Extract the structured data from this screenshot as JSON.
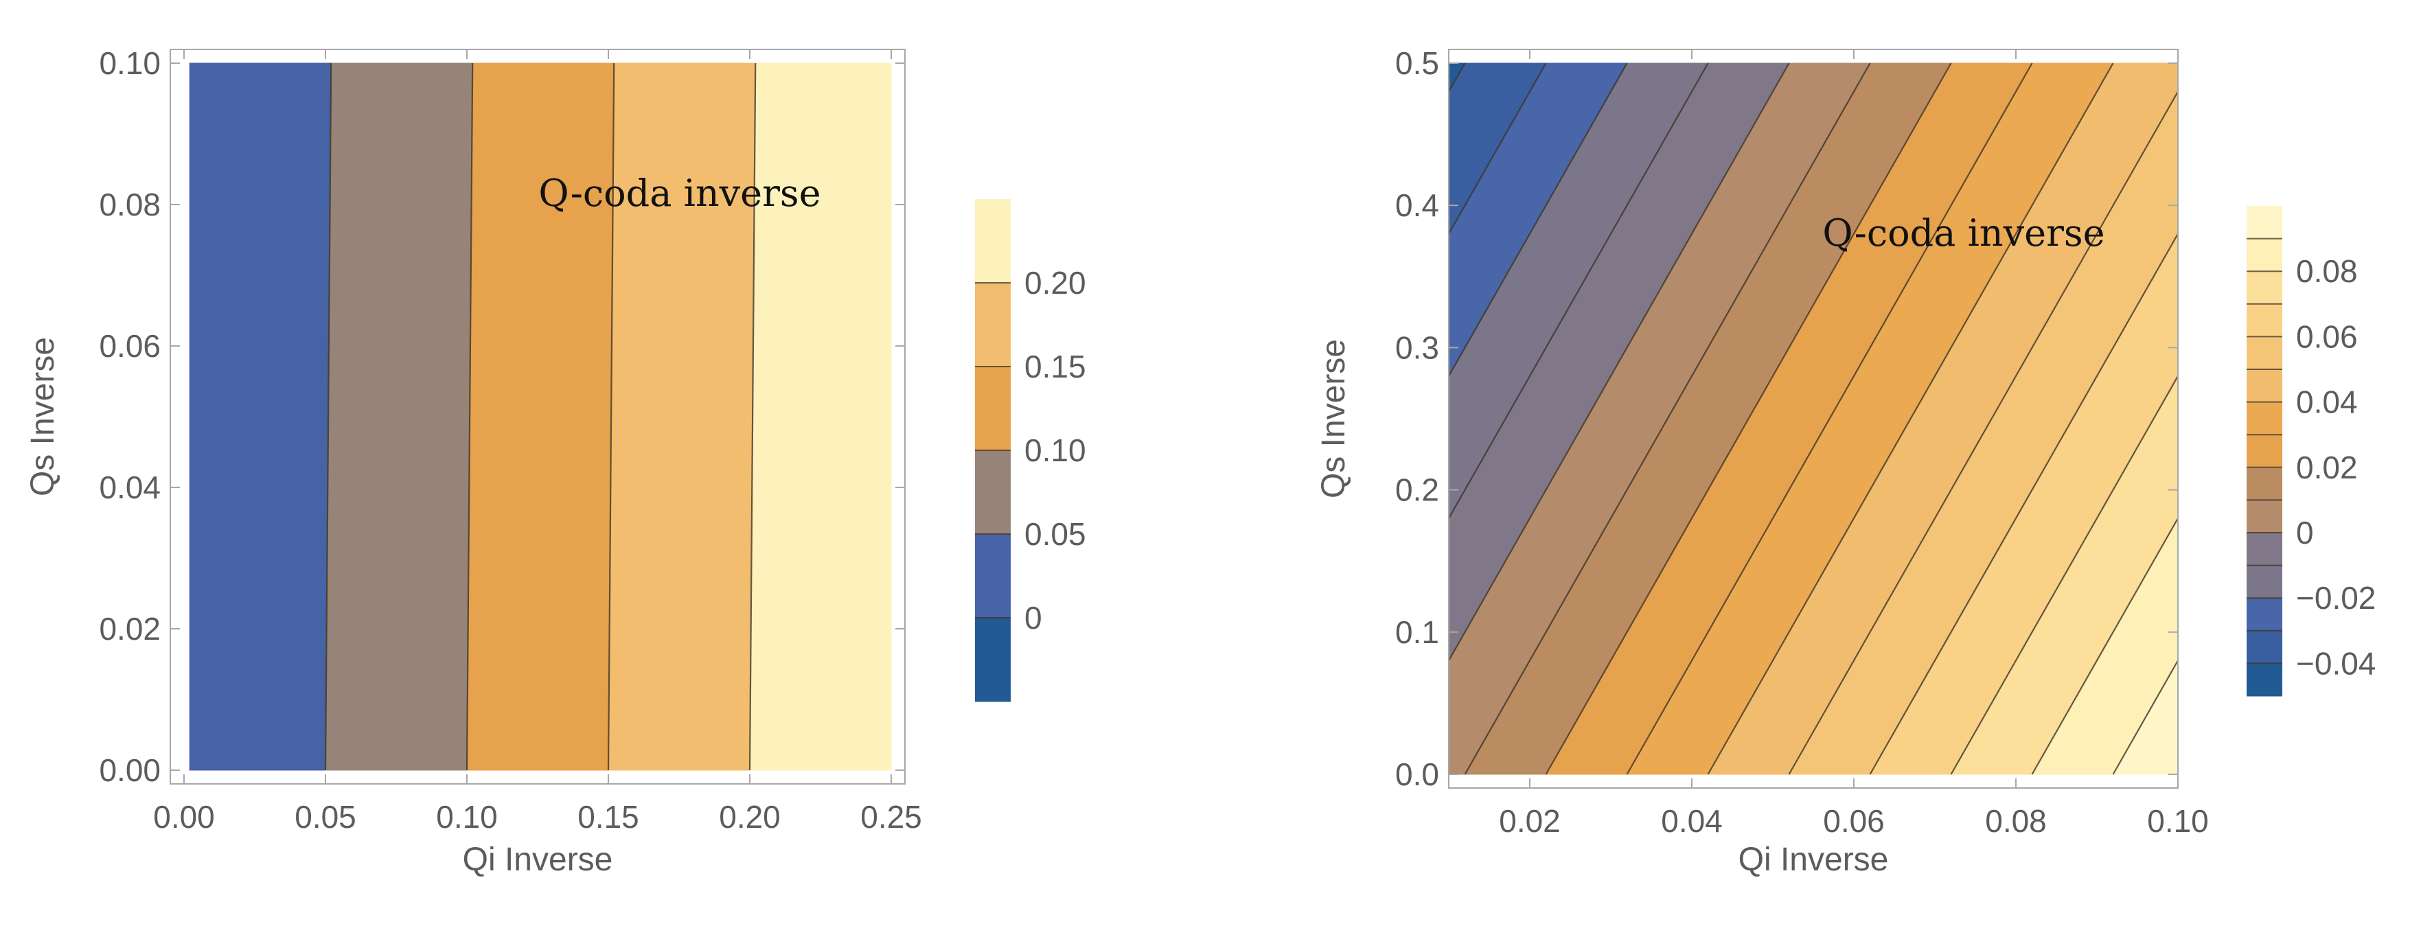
{
  "chart_data": [
    {
      "type": "contour",
      "xlabel": "Qi Inverse",
      "ylabel": "Qs Inverse",
      "annotation": "Q-coda inverse",
      "xlim": [
        0,
        0.25
      ],
      "ylim": [
        0,
        0.1
      ],
      "data_x_range": [
        0.002,
        0.25
      ],
      "data_y_range": [
        0,
        0.1
      ],
      "x_ticks": [
        0,
        0.05,
        0.1,
        0.15,
        0.2,
        0.25
      ],
      "x_tick_labels": [
        "0.00",
        "0.05",
        "0.10",
        "0.15",
        "0.20",
        "0.25"
      ],
      "y_ticks": [
        0,
        0.02,
        0.04,
        0.06,
        0.08,
        0.1
      ],
      "y_tick_labels": [
        "0.00",
        "0.02",
        "0.04",
        "0.06",
        "0.08",
        "0.10"
      ],
      "contour_model": {
        "form": "x + b*y + c",
        "b": -0.02,
        "c": 0.0
      },
      "levels": [
        -0.05,
        0,
        0.05,
        0.1,
        0.15,
        0.2,
        0.25
      ],
      "band_colors": [
        "#225b94",
        "#4663a6",
        "#968479",
        "#e6a24d",
        "#f2bd6e",
        "#fdf2bb"
      ],
      "legend_tick_labels": [
        "0",
        "0.05",
        "0.10",
        "0.15",
        "0.20"
      ],
      "grid": false,
      "legend_position": "right"
    },
    {
      "type": "contour",
      "xlabel": "Qi Inverse",
      "ylabel": "Qs Inverse",
      "annotation": "Q-coda inverse",
      "xlim": [
        0.01,
        0.1
      ],
      "ylim": [
        0,
        0.5
      ],
      "data_x_range": [
        0.01,
        0.1
      ],
      "data_y_range": [
        0,
        0.5
      ],
      "x_ticks": [
        0.02,
        0.04,
        0.06,
        0.08,
        0.1
      ],
      "x_tick_labels": [
        "0.02",
        "0.04",
        "0.06",
        "0.08",
        "0.10"
      ],
      "y_ticks": [
        0,
        0.1,
        0.2,
        0.3,
        0.4,
        0.5
      ],
      "y_tick_labels": [
        "0.0",
        "0.1",
        "0.2",
        "0.3",
        "0.4",
        "0.5"
      ],
      "contour_model": {
        "form": "x + b*y + c",
        "b": -0.1,
        "c": -0.002
      },
      "levels": [
        -0.05,
        -0.04,
        -0.03,
        -0.02,
        -0.01,
        0,
        0.01,
        0.02,
        0.03,
        0.04,
        0.05,
        0.06,
        0.07,
        0.08,
        0.09,
        0.1
      ],
      "band_colors": [
        "#225b94",
        "#3a5fa0",
        "#4866a8",
        "#7b768a",
        "#807889",
        "#b48b6b",
        "#bb8c62",
        "#e6a24d",
        "#eba952",
        "#f2bc6e",
        "#f5c577",
        "#f9d187",
        "#fcdf9b",
        "#fef0b6",
        "#fff6c8"
      ],
      "legend_ticks": [
        -0.04,
        -0.02,
        0,
        0.02,
        0.04,
        0.06,
        0.08
      ],
      "legend_tick_labels": [
        "−0.04",
        "−0.02",
        "0",
        "0.02",
        "0.04",
        "0.06",
        "0.08"
      ],
      "grid": false,
      "legend_position": "right"
    }
  ]
}
